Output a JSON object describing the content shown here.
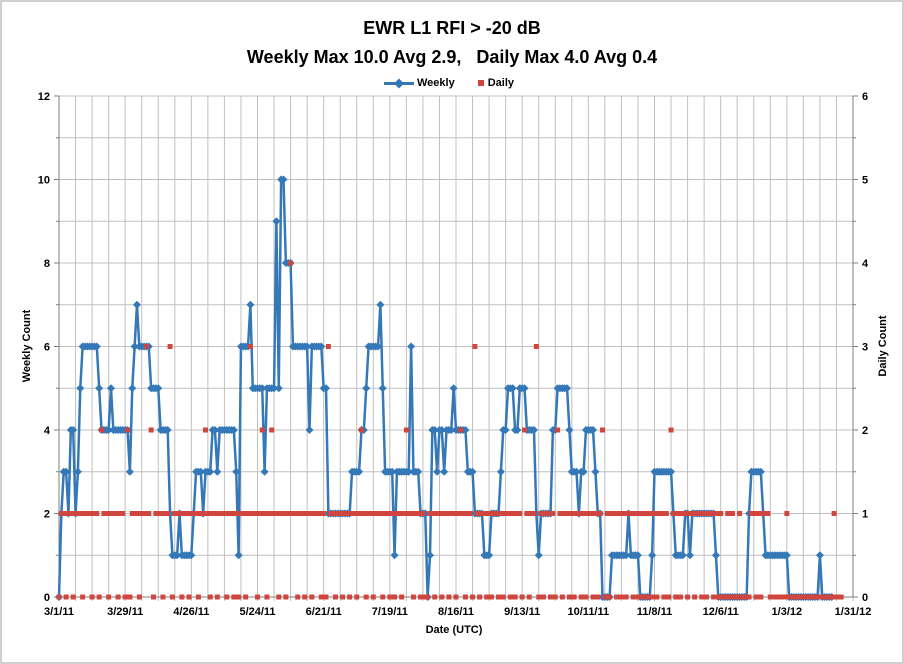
{
  "chart_data": {
    "type": "line+scatter",
    "title": "EWR L1 RFI > -20 dB",
    "subtitle": "Weekly Max 10.0 Avg 2.9,   Daily Max 4.0 Avg 0.4",
    "legend": {
      "weekly": "Weekly",
      "daily": "Daily"
    },
    "x_axis": {
      "label": "Date (UTC)",
      "start_date": "3/1/11",
      "end_date": "1/31/12",
      "tick_interval_days": 28,
      "gridline_interval_days": 7,
      "total_days": 336,
      "tick_labels": [
        "3/1/11",
        "3/29/11",
        "4/26/11",
        "5/24/11",
        "6/21/11",
        "7/19/11",
        "8/16/11",
        "9/13/11",
        "10/11/11",
        "11/8/11",
        "12/6/11",
        "1/3/12",
        "1/31/12"
      ]
    },
    "left_axis": {
      "label": "Weekly Count",
      "min": 0,
      "max": 12,
      "ticks": [
        "0",
        "2",
        "4",
        "6",
        "8",
        "10",
        "12"
      ]
    },
    "right_axis": {
      "label": "Daily Count",
      "min": 0,
      "max": 6,
      "ticks": [
        "0",
        "1",
        "2",
        "3",
        "4",
        "5",
        "6"
      ]
    },
    "grid": true,
    "legend_position": "top-center",
    "colors": {
      "weekly": "#3478B8",
      "daily": "#D0463E",
      "grid": "#C0C0C0",
      "axis": "#7F7F7F",
      "text": "#000000"
    },
    "series": [
      {
        "name": "Weekly",
        "marker": "diamond",
        "axis": "left",
        "values_daily_sampled": [
          0,
          2,
          3,
          3,
          2,
          4,
          4,
          2,
          3,
          5,
          6,
          6,
          6,
          6,
          6,
          6,
          6,
          5,
          4,
          4,
          4,
          4,
          5,
          4,
          4,
          4,
          4,
          4,
          4,
          4,
          3,
          5,
          6,
          7,
          6,
          6,
          6,
          6,
          6,
          5,
          5,
          5,
          5,
          4,
          4,
          4,
          4,
          2,
          1,
          1,
          1,
          2,
          1,
          1,
          1,
          1,
          1,
          2,
          3,
          3,
          3,
          2,
          3,
          3,
          3,
          4,
          4,
          3,
          4,
          4,
          4,
          4,
          4,
          4,
          4,
          3,
          1,
          6,
          6,
          6,
          6,
          7,
          5,
          5,
          5,
          5,
          5,
          3,
          5,
          5,
          5,
          5,
          9,
          5,
          10,
          10,
          8,
          8,
          8,
          6,
          6,
          6,
          6,
          6,
          6,
          6,
          4,
          6,
          6,
          6,
          6,
          6,
          5,
          5,
          2,
          2,
          2,
          2,
          2,
          2,
          2,
          2,
          2,
          2,
          3,
          3,
          3,
          3,
          4,
          4,
          5,
          6,
          6,
          6,
          6,
          6,
          7,
          5,
          3,
          3,
          3,
          3,
          1,
          3,
          3,
          3,
          3,
          3,
          3,
          6,
          3,
          3,
          3,
          2,
          2,
          2,
          0,
          1,
          4,
          4,
          3,
          4,
          4,
          3,
          4,
          4,
          4,
          5,
          4,
          4,
          4,
          4,
          4,
          3,
          3,
          3,
          2,
          2,
          2,
          2,
          1,
          1,
          1,
          2,
          2,
          2,
          2,
          3,
          4,
          4,
          5,
          5,
          5,
          4,
          4,
          5,
          5,
          5,
          4,
          4,
          4,
          4,
          2,
          1,
          2,
          2,
          2,
          2,
          2,
          4,
          4,
          5,
          5,
          5,
          5,
          5,
          4,
          3,
          3,
          3,
          2,
          3,
          3,
          4,
          4,
          4,
          4,
          3,
          2,
          2,
          0,
          0,
          0,
          0,
          1,
          1,
          1,
          1,
          1,
          1,
          1,
          2,
          1,
          1,
          1,
          1,
          0,
          0,
          0,
          0,
          0,
          1,
          3,
          3,
          3,
          3,
          3,
          3,
          3,
          3,
          2,
          1,
          1,
          1,
          1,
          2,
          2,
          1,
          2,
          2,
          2,
          2,
          2,
          2,
          2,
          2,
          2,
          2,
          1,
          0,
          0,
          0,
          0,
          0,
          0,
          0,
          0,
          0,
          0,
          0,
          0,
          0,
          2,
          3,
          3,
          3,
          3,
          3,
          2,
          1,
          1,
          1,
          1,
          1,
          1,
          1,
          1,
          1,
          1,
          0,
          0,
          0,
          0,
          0,
          0,
          0,
          0,
          0,
          0,
          0,
          0,
          0,
          1,
          0,
          0,
          0,
          0,
          0,
          null,
          null,
          null,
          null,
          null,
          null,
          null,
          null,
          null
        ]
      },
      {
        "name": "Daily",
        "marker": "square",
        "axis": "right",
        "values_daily": [
          0,
          1,
          1,
          0,
          1,
          1,
          0,
          1,
          1,
          1,
          0,
          1,
          1,
          1,
          0,
          1,
          1,
          0,
          2,
          1,
          1,
          0,
          1,
          1,
          1,
          0,
          1,
          1,
          0,
          2,
          0,
          1,
          1,
          1,
          0,
          1,
          1,
          3,
          1,
          2,
          0,
          1,
          1,
          1,
          0,
          1,
          1,
          3,
          0,
          1,
          1,
          1,
          0,
          1,
          1,
          0,
          1,
          1,
          1,
          0,
          1,
          1,
          2,
          1,
          0,
          1,
          1,
          0,
          1,
          1,
          1,
          0,
          1,
          1,
          0,
          1,
          0,
          1,
          1,
          0,
          1,
          3,
          1,
          1,
          0,
          1,
          2,
          1,
          0,
          1,
          2,
          1,
          1,
          0,
          1,
          1,
          0,
          1,
          4,
          1,
          1,
          0,
          1,
          1,
          0,
          1,
          1,
          0,
          1,
          1,
          1,
          0,
          1,
          0,
          3,
          1,
          1,
          0,
          1,
          1,
          0,
          1,
          1,
          0,
          1,
          1,
          0,
          1,
          2,
          1,
          0,
          1,
          1,
          0,
          1,
          1,
          1,
          0,
          1,
          1,
          0,
          1,
          0,
          1,
          1,
          0,
          1,
          2,
          1,
          1,
          0,
          1,
          1,
          0,
          1,
          0,
          0,
          1,
          1,
          0,
          1,
          1,
          0,
          1,
          1,
          0,
          1,
          1,
          0,
          1,
          2,
          1,
          0,
          1,
          1,
          0,
          3,
          1,
          0,
          1,
          1,
          0,
          1,
          0,
          1,
          1,
          0,
          1,
          0,
          1,
          1,
          0,
          1,
          0,
          1,
          1,
          0,
          2,
          1,
          0,
          1,
          1,
          3,
          0,
          1,
          0,
          1,
          1,
          0,
          1,
          0,
          2,
          1,
          0,
          1,
          1,
          0,
          1,
          0,
          1,
          1,
          0,
          1,
          0,
          1,
          1,
          0,
          1,
          0,
          1,
          2,
          0,
          1,
          0,
          1,
          1,
          0,
          1,
          0,
          1,
          0,
          1,
          1,
          0,
          1,
          0,
          1,
          0,
          1,
          0,
          1,
          0,
          1,
          0,
          1,
          1,
          0,
          1,
          0,
          2,
          1,
          0,
          1,
          0,
          1,
          1,
          0,
          1,
          1,
          0,
          1,
          1,
          0,
          1,
          0,
          1,
          1,
          0,
          1,
          0,
          1,
          0,
          0,
          1,
          0,
          1,
          0,
          0,
          1,
          0,
          0,
          0,
          0,
          1,
          1,
          0,
          1,
          0,
          1,
          1,
          1,
          0,
          0,
          0,
          0,
          0,
          0,
          0,
          1,
          0,
          0,
          0,
          0,
          0,
          0,
          0,
          0,
          0,
          0,
          0,
          0,
          0,
          0,
          0,
          0,
          0,
          0,
          0,
          1,
          0,
          0,
          0,
          null,
          null,
          null,
          null,
          null
        ]
      }
    ]
  }
}
